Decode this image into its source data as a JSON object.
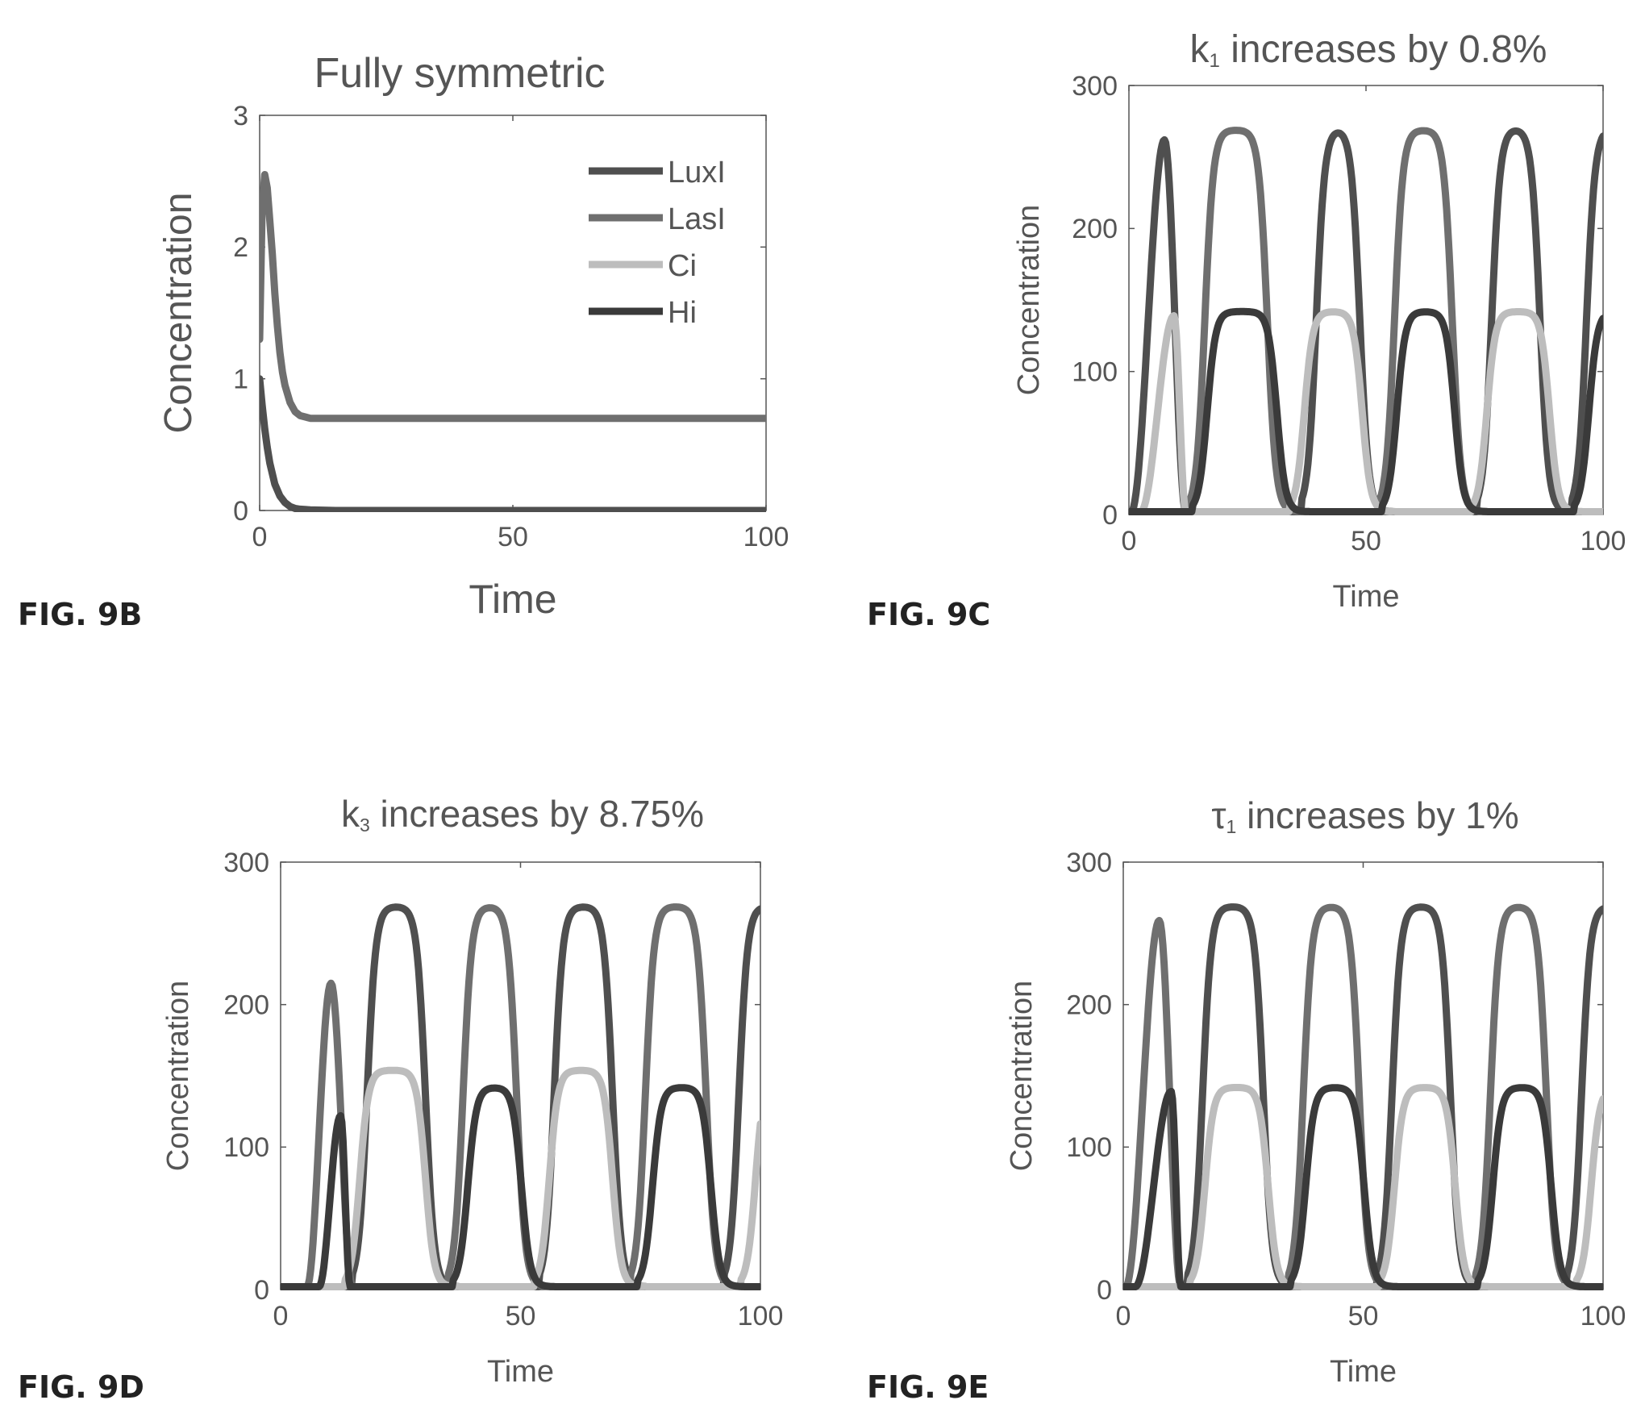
{
  "colors": {
    "LuxI": "#4f4f4f",
    "LasI": "#6f6f6f",
    "Ci": "#bdbdbd",
    "Hi": "#3a3a3a",
    "axis": "#555555",
    "text": "#555555",
    "fig_label": "#222222"
  },
  "chart_data": [
    {
      "id": "9B",
      "type": "line",
      "fig_label": "FIG. 9B",
      "title": "Fully symmetric",
      "title_parts": [],
      "xlabel": "Time",
      "ylabel": "Concentration",
      "xlim": [
        0,
        100
      ],
      "ylim": [
        0,
        3
      ],
      "xticks": [
        0,
        50,
        100
      ],
      "yticks": [
        0,
        1,
        2,
        3
      ],
      "grid": false,
      "legend": "top-right",
      "legend_entries": [
        "LuxI",
        "LasI",
        "Ci",
        "Hi"
      ],
      "series": [
        {
          "name": "LasI",
          "color": "#6f6f6f",
          "x": [
            0,
            0.5,
            1,
            1.5,
            2,
            2.5,
            3,
            3.5,
            4,
            4.5,
            5,
            6,
            7,
            8,
            9,
            10,
            12,
            15,
            20,
            30,
            50,
            70,
            100
          ],
          "y": [
            1.3,
            2.3,
            2.55,
            2.45,
            2.2,
            1.95,
            1.65,
            1.4,
            1.2,
            1.05,
            0.95,
            0.82,
            0.75,
            0.72,
            0.71,
            0.7,
            0.7,
            0.7,
            0.7,
            0.7,
            0.7,
            0.7,
            0.7
          ]
        },
        {
          "name": "LuxI",
          "color": "#4f4f4f",
          "x": [
            0,
            0.5,
            1,
            1.5,
            2,
            3,
            4,
            5,
            6,
            7,
            8,
            10,
            15,
            20,
            50,
            100
          ],
          "y": [
            1.0,
            0.8,
            0.62,
            0.48,
            0.36,
            0.2,
            0.11,
            0.06,
            0.03,
            0.015,
            0.01,
            0.005,
            0,
            0,
            0,
            0
          ]
        }
      ]
    },
    {
      "id": "9C",
      "type": "line",
      "fig_label": "FIG. 9C",
      "title": "k1 increases by 0.8%",
      "title_parts": [
        {
          "text": "k",
          "sub": false
        },
        {
          "text": "1",
          "sub": true
        },
        {
          "text": " increases by 0.8%",
          "sub": false
        }
      ],
      "xlabel": "Time",
      "ylabel": "Concentration",
      "xlim": [
        0,
        100
      ],
      "ylim": [
        0,
        300
      ],
      "xticks": [
        0,
        50,
        100
      ],
      "yticks": [
        0,
        100,
        200,
        300
      ],
      "grid": false,
      "legend": "none",
      "legend_entries": [],
      "series": [
        {
          "name": "LuxI",
          "color": "#4f4f4f",
          "plateau": 268,
          "pulses": [
            [
              0.5,
              7.5,
              12
            ],
            [
              37.5,
              50.5
            ],
            [
              74.5,
              88.5
            ],
            [
              94.5,
              110
            ]
          ]
        },
        {
          "name": "LasI",
          "color": "#6f6f6f",
          "plateau": 267,
          "pulses": [
            [
              14,
              31
            ],
            [
              54,
              70
            ]
          ]
        },
        {
          "name": "Ci",
          "color": "#bdbdbd",
          "plateau": 140,
          "pulses": [
            [
              2.5,
              9.5,
              12
            ],
            [
              35,
              51
            ],
            [
              73.5,
              90.5
            ]
          ]
        },
        {
          "name": "Hi",
          "color": "#3a3a3a",
          "plateau": 140,
          "pulses": [
            [
              14.5,
              33
            ],
            [
              54.5,
              70.5
            ],
            [
              95,
              110
            ]
          ]
        }
      ]
    },
    {
      "id": "9D",
      "type": "line",
      "fig_label": "FIG. 9D",
      "title": "k3 increases by 8.75%",
      "title_parts": [
        {
          "text": "k",
          "sub": false
        },
        {
          "text": "3",
          "sub": true
        },
        {
          "text": " increases by 8.75%",
          "sub": false
        }
      ],
      "xlabel": "Time",
      "ylabel": "Concentration",
      "xlim": [
        0,
        100
      ],
      "ylim": [
        0,
        300
      ],
      "xticks": [
        0,
        50,
        100
      ],
      "yticks": [
        0,
        100,
        200,
        300
      ],
      "grid": false,
      "legend": "none",
      "legend_entries": [],
      "series": [
        {
          "name": "LuxI",
          "color": "#4f4f4f",
          "plateau": 267,
          "pulses": [
            [
              16,
              32
            ],
            [
              55,
              71
            ],
            [
              93.5,
              110
            ]
          ]
        },
        {
          "name": "LasI",
          "color": "#6f6f6f",
          "plateau": 267,
          "pulses": [
            [
              5.5,
              10.5,
              15
            ],
            [
              36,
              51
            ],
            [
              74,
              90.5
            ]
          ]
        },
        {
          "name": "Ci",
          "color": "#bdbdbd",
          "plateau": 152,
          "pulses": [
            [
              14.5,
              32
            ],
            [
              54,
              71
            ],
            [
              97,
              110
            ]
          ]
        },
        {
          "name": "Hi",
          "color": "#3a3a3a",
          "plateau": 140,
          "pulses": [
            [
              8,
              12.5,
              14.5
            ],
            [
              37,
              52
            ],
            [
              75.5,
              91.5
            ]
          ]
        }
      ]
    },
    {
      "id": "9E",
      "type": "line",
      "fig_label": "FIG. 9E",
      "title": "τ1 increases by 1%",
      "title_parts": [
        {
          "text": "τ",
          "sub": false
        },
        {
          "text": "1",
          "sub": true
        },
        {
          "text": " increases by 1%",
          "sub": false
        }
      ],
      "xlabel": "Time",
      "ylabel": "Concentration",
      "xlim": [
        0,
        100
      ],
      "ylim": [
        0,
        300
      ],
      "xticks": [
        0,
        50,
        100
      ],
      "yticks": [
        0,
        100,
        200,
        300
      ],
      "grid": false,
      "legend": "none",
      "legend_entries": [],
      "series": [
        {
          "name": "LuxI",
          "color": "#4f4f4f",
          "plateau": 267,
          "pulses": [
            [
              14.5,
              31
            ],
            [
              54,
              70
            ],
            [
              93.5,
              110
            ]
          ]
        },
        {
          "name": "LasI",
          "color": "#6f6f6f",
          "plateau": 267,
          "pulses": [
            [
              0.5,
              7.5,
              12
            ],
            [
              35.5,
              51
            ],
            [
              74.5,
              90
            ]
          ]
        },
        {
          "name": "Ci",
          "color": "#bdbdbd",
          "plateau": 140,
          "pulses": [
            [
              15,
              32
            ],
            [
              54.5,
              71
            ],
            [
              95.5,
              110
            ]
          ]
        },
        {
          "name": "Hi",
          "color": "#3a3a3a",
          "plateau": 140,
          "pulses": [
            [
              2.5,
              10,
              12
            ],
            [
              36,
              52
            ],
            [
              75,
              91
            ]
          ]
        }
      ]
    }
  ]
}
